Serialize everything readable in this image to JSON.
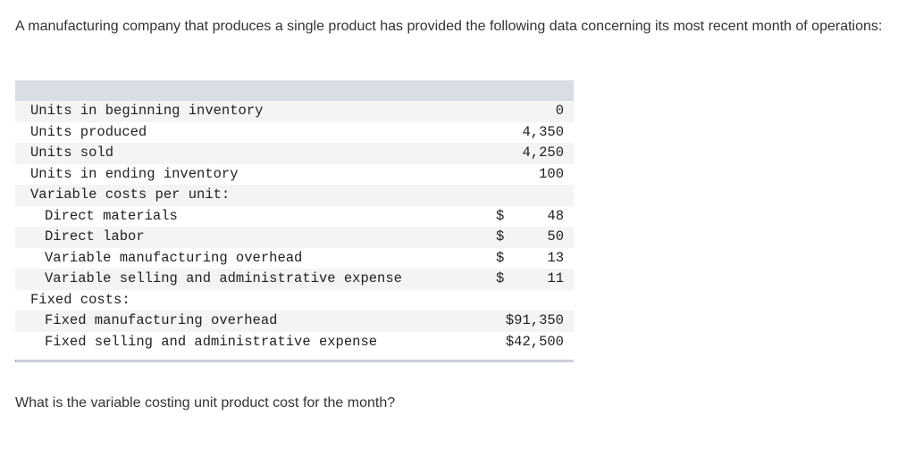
{
  "intro": "A manufacturing company that produces a single product has provided the following data concerning its most recent month of operations:",
  "table": {
    "rows": [
      [
        "Units in beginning inventory",
        "0"
      ],
      [
        "Units produced",
        "4,350"
      ],
      [
        "Units sold",
        "4,250"
      ],
      [
        "Units in ending inventory",
        "100"
      ],
      [
        "Variable costs per unit:"
      ],
      [
        "Direct materials",
        "$",
        "48"
      ],
      [
        "Direct labor",
        "$",
        "50"
      ],
      [
        "Variable manufacturing overhead",
        "$",
        "13"
      ],
      [
        "Variable selling and administrative expense",
        "$",
        "11"
      ],
      [
        "Fixed costs:"
      ],
      [
        "Fixed manufacturing overhead",
        "$91,350"
      ],
      [
        "Fixed selling and administrative expense",
        "$42,500"
      ]
    ]
  },
  "question": "What is the variable costing unit product cost for the month?"
}
